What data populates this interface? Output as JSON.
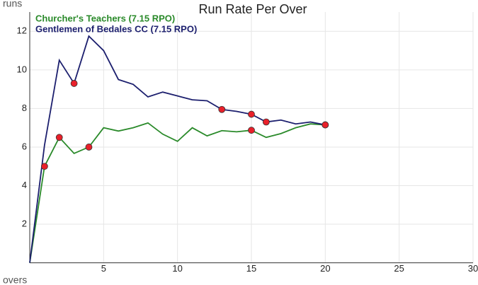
{
  "chart_data": {
    "type": "line",
    "title": "Run Rate Per Over",
    "x_label": "overs",
    "y_label": "runs",
    "x": [
      0,
      1,
      2,
      3,
      4,
      5,
      6,
      7,
      8,
      9,
      10,
      11,
      12,
      13,
      14,
      15,
      16,
      17,
      18,
      19,
      20
    ],
    "series": [
      {
        "name": "Churcher's Teachers (7.15 RPO)",
        "color": "#2a8a2a",
        "values": [
          0,
          5,
          6.5,
          5.67,
          6,
          7,
          6.83,
          7,
          7.25,
          6.67,
          6.3,
          7,
          6.58,
          6.85,
          6.79,
          6.87,
          6.5,
          6.7,
          7,
          7.2,
          7.15
        ],
        "wickets": [
          1,
          2,
          4,
          15,
          20
        ]
      },
      {
        "name": "Gentlemen of Bedales CC (7.15 RPO)",
        "color": "#1c1f6e",
        "values": [
          0,
          6.1,
          10.5,
          9.3,
          11.75,
          11,
          9.5,
          9.25,
          8.6,
          8.85,
          8.65,
          8.45,
          8.4,
          7.95,
          7.85,
          7.7,
          7.3,
          7.4,
          7.2,
          7.3,
          7.15
        ],
        "wickets": [
          3,
          13,
          15,
          16,
          20
        ]
      }
    ],
    "wicket_color": "#e8202a",
    "xlim": [
      0,
      30
    ],
    "xticks": [
      5,
      10,
      15,
      20,
      25,
      30
    ],
    "ylim": [
      0,
      13
    ],
    "yticks": [
      2,
      4,
      6,
      8,
      10,
      12
    ],
    "grid": true
  }
}
